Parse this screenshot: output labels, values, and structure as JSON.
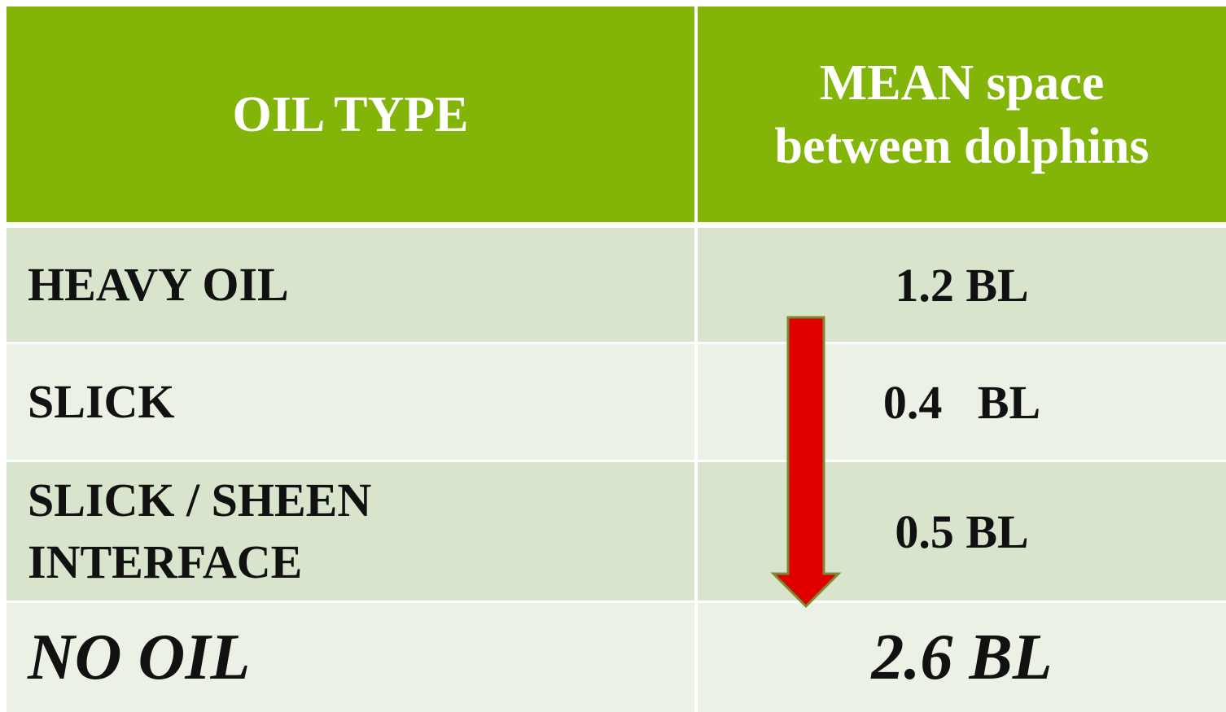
{
  "table": {
    "header": [
      "OIL TYPE",
      "MEAN space between dolphins"
    ],
    "rows": [
      [
        "HEAVY OIL",
        "1.2 BL"
      ],
      [
        "SLICK",
        "0.4   BL"
      ],
      [
        "SLICK / SHEEN INTERFACE",
        "0.5 BL"
      ],
      [
        "NO OIL",
        "2.6 BL"
      ]
    ]
  }
}
